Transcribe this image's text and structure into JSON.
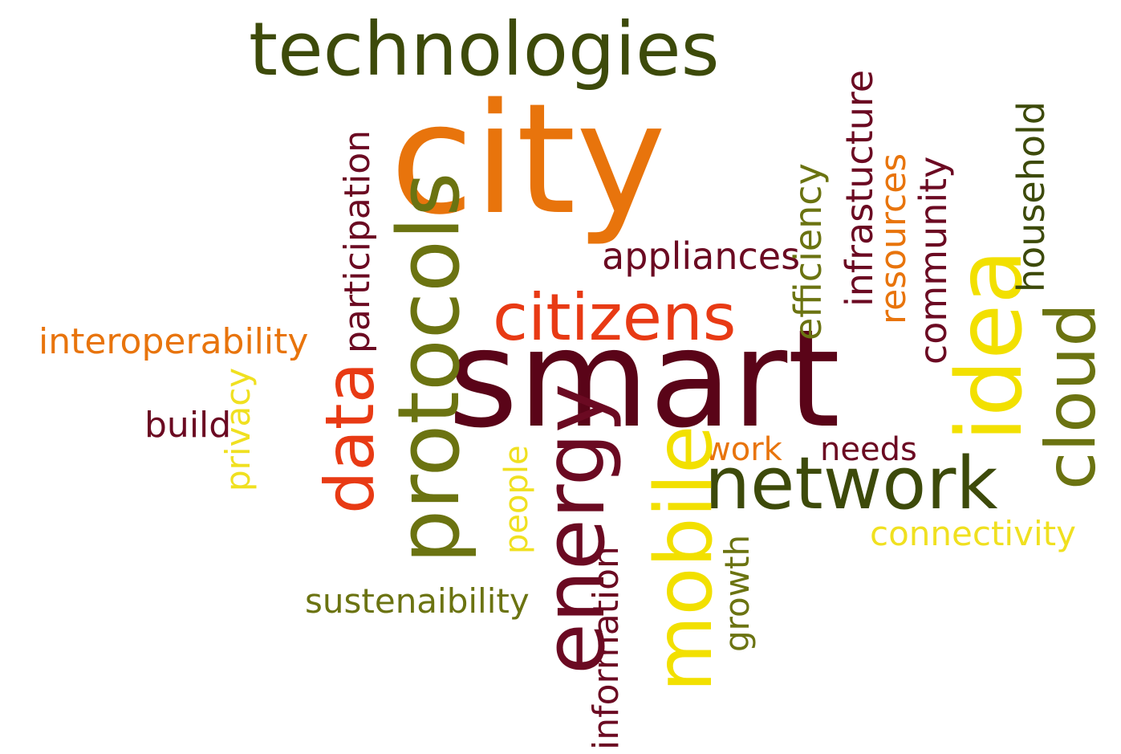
{
  "palette": {
    "dark_olive": "#3d4a0a",
    "olive": "#6b7311",
    "orange": "#e8740c",
    "red_orange": "#e83a14",
    "maroon": "#6b0a22",
    "dark_maroon": "#5a0418",
    "yellow": "#f2e000",
    "light_yellow": "#f0e020"
  },
  "words": {
    "technologies": "technologies",
    "city": "city",
    "smart": "smart",
    "citizens": "citizens",
    "appliances": "appliances",
    "participation": "participation",
    "protocols": "protocols",
    "data": "data",
    "energy": "energy",
    "mobile": "mobile",
    "network": "network",
    "idea": "idea",
    "cloud": "cloud",
    "household": "household",
    "community": "community",
    "resources": "resources",
    "infrastucture": "infrastucture",
    "efficiency": "efficiency",
    "work": "work",
    "needs": "needs",
    "connectivity": "connectivity",
    "people": "people",
    "interoperability": "interoperability",
    "build": "build",
    "privacy": "privacy",
    "sustenaibility": "sustenaibility",
    "information": "information",
    "growth": "growth"
  }
}
